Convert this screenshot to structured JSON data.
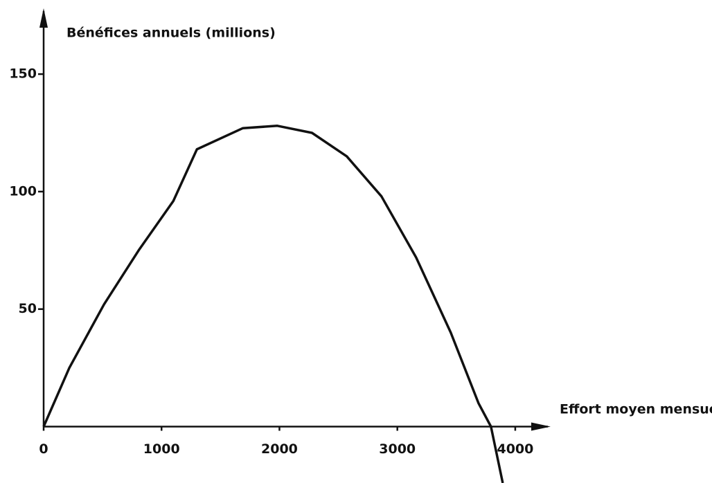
{
  "chart_data": {
    "type": "line",
    "y_label": "Bénéfices annuels (millions)",
    "x_label": "Effort moyen mensuel",
    "x": [
      0,
      218,
      512,
      806,
      1100,
      1300,
      1690,
      1982,
      2276,
      2571,
      2865,
      3159,
      3453,
      3688,
      3794,
      3894
    ],
    "series": [
      {
        "color": "#111111",
        "values": [
          0,
          25,
          52,
          75,
          96,
          118,
          127,
          128,
          125,
          115,
          98,
          72,
          40,
          10,
          0,
          -24
        ]
      }
    ],
    "xlim": [
      0,
      4300
    ],
    "ylim": [
      -24,
      178
    ],
    "xticks": [
      0,
      1000,
      2000,
      3000,
      4000
    ],
    "yticks": [
      50,
      100,
      150
    ],
    "grid": false
  }
}
